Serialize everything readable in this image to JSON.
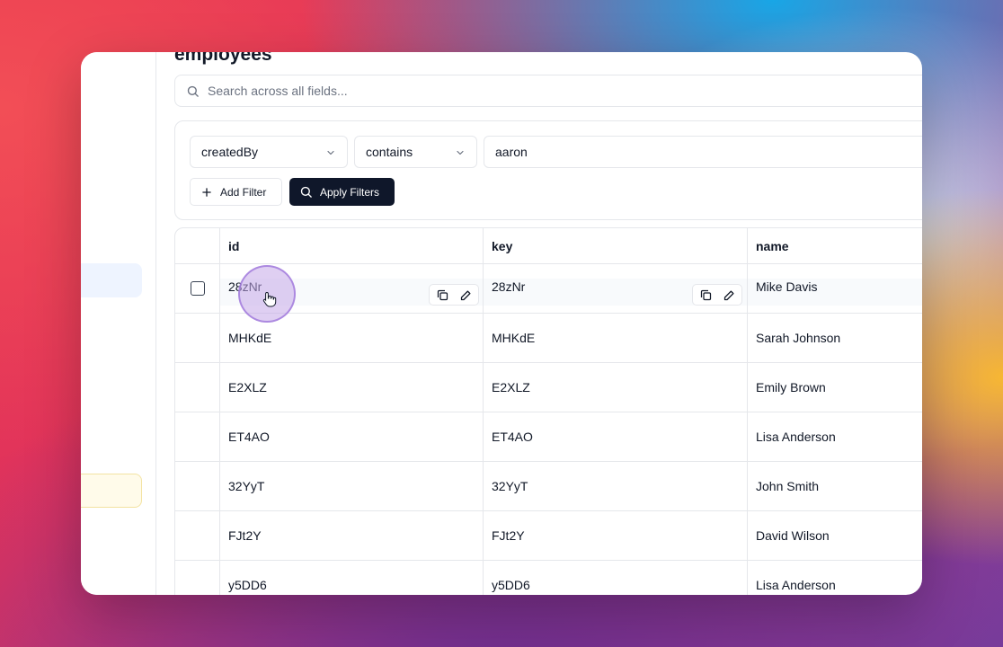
{
  "page": {
    "title": "employees",
    "search_placeholder": "Search across all fields..."
  },
  "filters": {
    "field": "createdBy",
    "operator": "contains",
    "value": "aaron",
    "add_filter_label": "Add Filter",
    "apply_filters_label": "Apply Filters"
  },
  "table": {
    "columns": [
      "id",
      "key",
      "name"
    ],
    "rows": [
      {
        "id": "28zNr",
        "key": "28zNr",
        "name": "Mike Davis"
      },
      {
        "id": "MHKdE",
        "key": "MHKdE",
        "name": "Sarah Johnson"
      },
      {
        "id": "E2XLZ",
        "key": "E2XLZ",
        "name": "Emily Brown"
      },
      {
        "id": "ET4AO",
        "key": "ET4AO",
        "name": "Lisa Anderson"
      },
      {
        "id": "32YyT",
        "key": "32YyT",
        "name": "John Smith"
      },
      {
        "id": "FJt2Y",
        "key": "FJt2Y",
        "name": "David Wilson"
      },
      {
        "id": "y5DD6",
        "key": "y5DD6",
        "name": "Lisa Anderson"
      }
    ]
  },
  "icons": {
    "search": "search-icon",
    "chevron": "chevron-down-icon",
    "add": "plus-icon",
    "copy": "copy-icon",
    "edit": "pencil-icon",
    "cursor": "hand-pointer-icon"
  },
  "colors": {
    "primary_button": "#0f172a",
    "selected_nav": "#eef4ff",
    "highlight_nav": "#fffbea",
    "cursor_halo": "#c4a7e7"
  }
}
